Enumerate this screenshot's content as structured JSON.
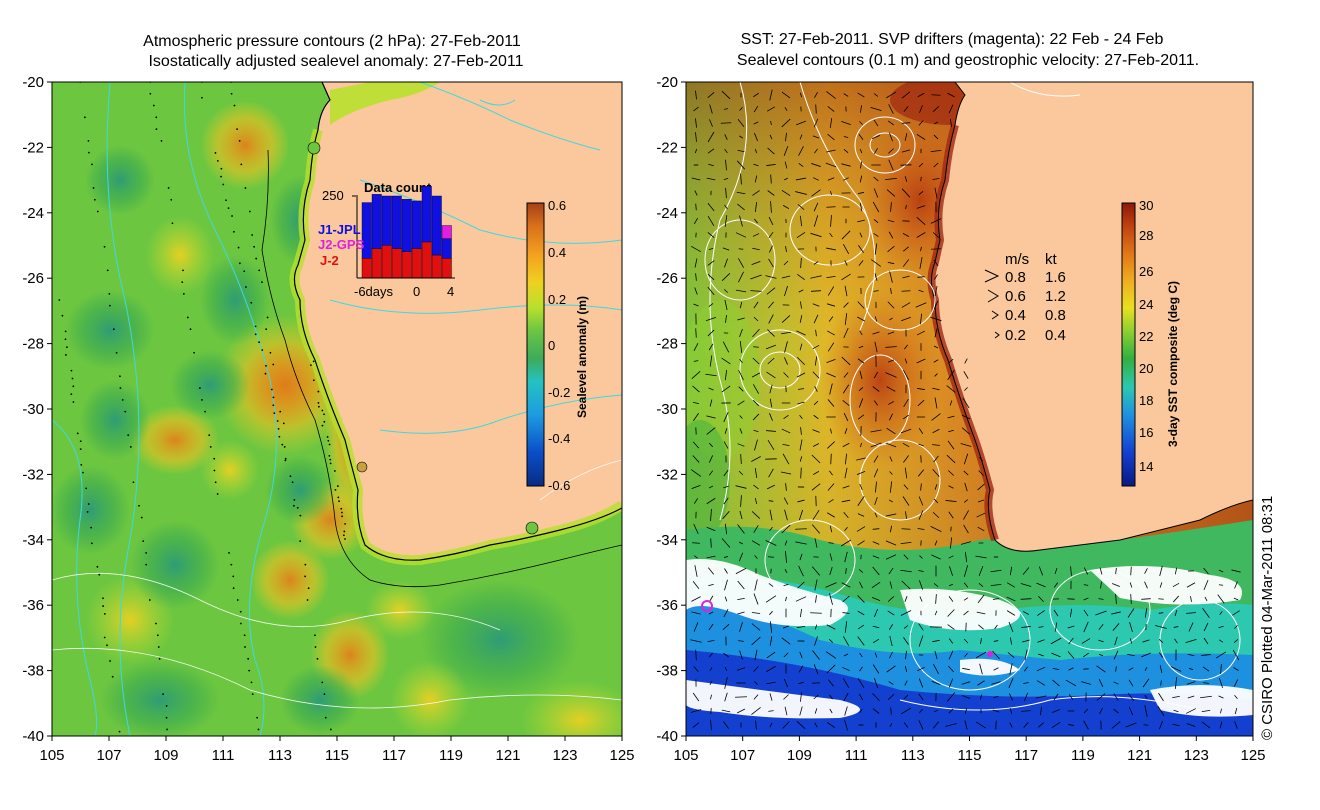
{
  "left_panel": {
    "title_line1": "Atmospheric pressure contours (2 hPa): 27-Feb-2011",
    "title_line2": "Isostatically adjusted sealevel anomaly: 27-Feb-2011",
    "colorbar": {
      "label": "Sealevel anomaly (m)",
      "ticks": [
        "0.6",
        "0.4",
        "0.2",
        "0",
        "-0.2",
        "-0.4",
        "-0.6"
      ],
      "colors": [
        "#082c82",
        "#0a4fc8",
        "#1d9be0",
        "#25c2c0",
        "#3dab5a",
        "#6cc640",
        "#b8e02c",
        "#f0d020",
        "#f2a020",
        "#d8701a",
        "#a84018"
      ]
    },
    "inset": {
      "title": "Data count",
      "y_max": "250",
      "legend": [
        {
          "label": "J1-JPL",
          "color": "#1010e0"
        },
        {
          "label": "J2-GPS",
          "color": "#e020e0"
        },
        {
          "label": "J-2",
          "color": "#e01010"
        }
      ],
      "xticks": [
        "-6days",
        "0",
        "4"
      ],
      "chart_data": {
        "type": "bar",
        "title": "Data count",
        "ylim": [
          0,
          250
        ],
        "xlim": [
          -6,
          4
        ],
        "categories": [
          "-6",
          "-5",
          "-4",
          "-3",
          "-2",
          "-1",
          "0",
          "1",
          "2"
        ],
        "series": [
          {
            "name": "J-2",
            "values": [
              60,
              90,
              100,
              90,
              80,
              90,
              110,
              70,
              60
            ]
          },
          {
            "name": "J1-JPL",
            "values": [
              170,
              165,
              150,
              160,
              160,
              145,
              170,
              180,
              60
            ]
          },
          {
            "name": "J2-GPS",
            "values": [
              0,
              0,
              0,
              0,
              0,
              0,
              0,
              0,
              40
            ]
          }
        ]
      }
    }
  },
  "right_panel": {
    "title_line1": "SST: 27-Feb-2011. SVP drifters (magenta): 22 Feb - 24 Feb",
    "title_line2": "Sealevel contours (0.1 m) and geostrophic velocity: 27-Feb-2011.",
    "colorbar": {
      "label": "3-day SST composite (deg C)",
      "ticks": [
        "30",
        "28",
        "26",
        "24",
        "22",
        "20",
        "18",
        "16",
        "14"
      ],
      "colors": [
        "#0a1880",
        "#1440d0",
        "#1e90e0",
        "#2cc8b0",
        "#30b040",
        "#90d030",
        "#e8e020",
        "#f0b020",
        "#e07818",
        "#c04010",
        "#8c1808"
      ]
    },
    "vector_legend": {
      "header_ms": "m/s",
      "header_kt": "kt",
      "rows": [
        {
          "ms": "0.8",
          "kt": "1.6"
        },
        {
          "ms": "0.6",
          "kt": "1.2"
        },
        {
          "ms": "0.4",
          "kt": "0.8"
        },
        {
          "ms": "0.2",
          "kt": "0.4"
        }
      ]
    }
  },
  "axes": {
    "y_labels": [
      "-20",
      "-22",
      "-24",
      "-26",
      "-28",
      "-30",
      "-32",
      "-34",
      "-36",
      "-38",
      "-40"
    ],
    "x_labels": [
      "105",
      "107",
      "109",
      "111",
      "113",
      "115",
      "117",
      "119",
      "121",
      "123",
      "125"
    ]
  },
  "credit": "© CSIRO Plotted 04-Mar-2011 08:31",
  "colors": {
    "land": "#fac89c",
    "coast": "#000000",
    "contour_left": "#40d8e0",
    "contour_right": "#ffffff"
  }
}
